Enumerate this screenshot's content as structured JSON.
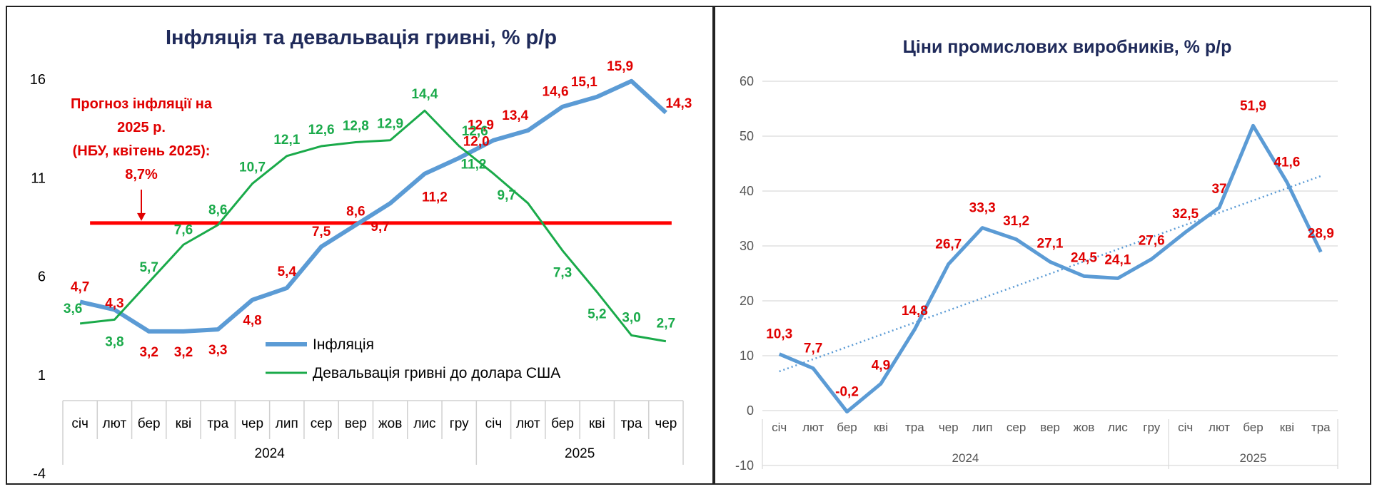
{
  "chart_data": [
    {
      "type": "line",
      "title": "Інфляція та девальвація гривні, % р/р",
      "categories": [
        "січ",
        "лют",
        "бер",
        "кві",
        "тра",
        "чер",
        "лип",
        "сер",
        "вер",
        "жов",
        "лис",
        "гру",
        "січ",
        "лют",
        "бер",
        "кві",
        "тра",
        "чер"
      ],
      "year_groups": [
        {
          "label": "2024",
          "span": 12
        },
        {
          "label": "2025",
          "span": 6
        }
      ],
      "ylim": [
        -4,
        16
      ],
      "yticks": [
        "-4",
        "1",
        "6",
        "11",
        "16"
      ],
      "series": [
        {
          "name": "Інфляція",
          "color": "#5b9bd5",
          "values": [
            4.7,
            4.3,
            3.2,
            3.2,
            3.3,
            4.8,
            5.4,
            7.5,
            8.6,
            9.7,
            11.2,
            12.0,
            12.9,
            13.4,
            14.6,
            15.1,
            15.9,
            14.3
          ],
          "labels": [
            "4,7",
            "4,3",
            "3,2",
            "3,2",
            "3,3",
            "4,8",
            "5,4",
            "7,5",
            "8,6",
            "9,7",
            "11,2",
            "12,0",
            "12,9",
            "13,4",
            "14,6",
            "15,1",
            "15,9",
            "14,3"
          ]
        },
        {
          "name": "Девальвація гривні до долара США",
          "color": "#1aaa4a",
          "values": [
            3.6,
            3.8,
            5.7,
            7.6,
            8.6,
            10.7,
            12.1,
            12.6,
            12.8,
            12.9,
            14.4,
            12.6,
            11.2,
            9.7,
            7.3,
            5.2,
            3.0,
            2.7
          ],
          "labels": [
            "3,6",
            "3,8",
            "5,7",
            "7,6",
            "8,6",
            "10,7",
            "12,1",
            "12,6",
            "12,8",
            "12,9",
            "14,4",
            "12,6",
            "11,2",
            "9,7",
            "7,3",
            "5,2",
            "3,0",
            "2,7"
          ]
        }
      ],
      "reference_line": {
        "value": 8.7,
        "color": "#ff0000"
      },
      "annotation": {
        "lines": [
          "Прогноз інфляції на",
          "2025 р.",
          "(НБУ, квітень 2025):",
          "8,7%"
        ],
        "color": "#e00000"
      },
      "legend_position": "bottom-center",
      "grid": false
    },
    {
      "type": "line",
      "title": "Ціни промислових виробників, % р/р",
      "categories": [
        "січ",
        "лют",
        "бер",
        "кві",
        "тра",
        "чер",
        "лип",
        "сер",
        "вер",
        "жов",
        "лис",
        "гру",
        "січ",
        "лют",
        "бер",
        "кві",
        "тра"
      ],
      "year_groups": [
        {
          "label": "2024",
          "span": 12
        },
        {
          "label": "2025",
          "span": 5
        }
      ],
      "ylim": [
        -10,
        60
      ],
      "yticks": [
        "-10",
        "0",
        "10",
        "20",
        "30",
        "40",
        "50",
        "60"
      ],
      "series": [
        {
          "color": "#5b9bd5",
          "values": [
            10.3,
            7.7,
            -0.2,
            4.9,
            14.8,
            26.7,
            33.3,
            31.2,
            27.1,
            24.5,
            24.1,
            27.6,
            32.5,
            37,
            51.9,
            41.6,
            28.9
          ],
          "labels": [
            "10,3",
            "7,7",
            "-0,2",
            "4,9",
            "14,8",
            "26,7",
            "33,3",
            "31,2",
            "27,1",
            "24,5",
            "24,1",
            "27,6",
            "32,5",
            "37",
            "51,9",
            "41,6",
            "28,9"
          ]
        }
      ],
      "trendline": {
        "style": "dotted",
        "color": "#5b9bd5"
      },
      "label_color": "#e00000",
      "grid": true
    }
  ]
}
